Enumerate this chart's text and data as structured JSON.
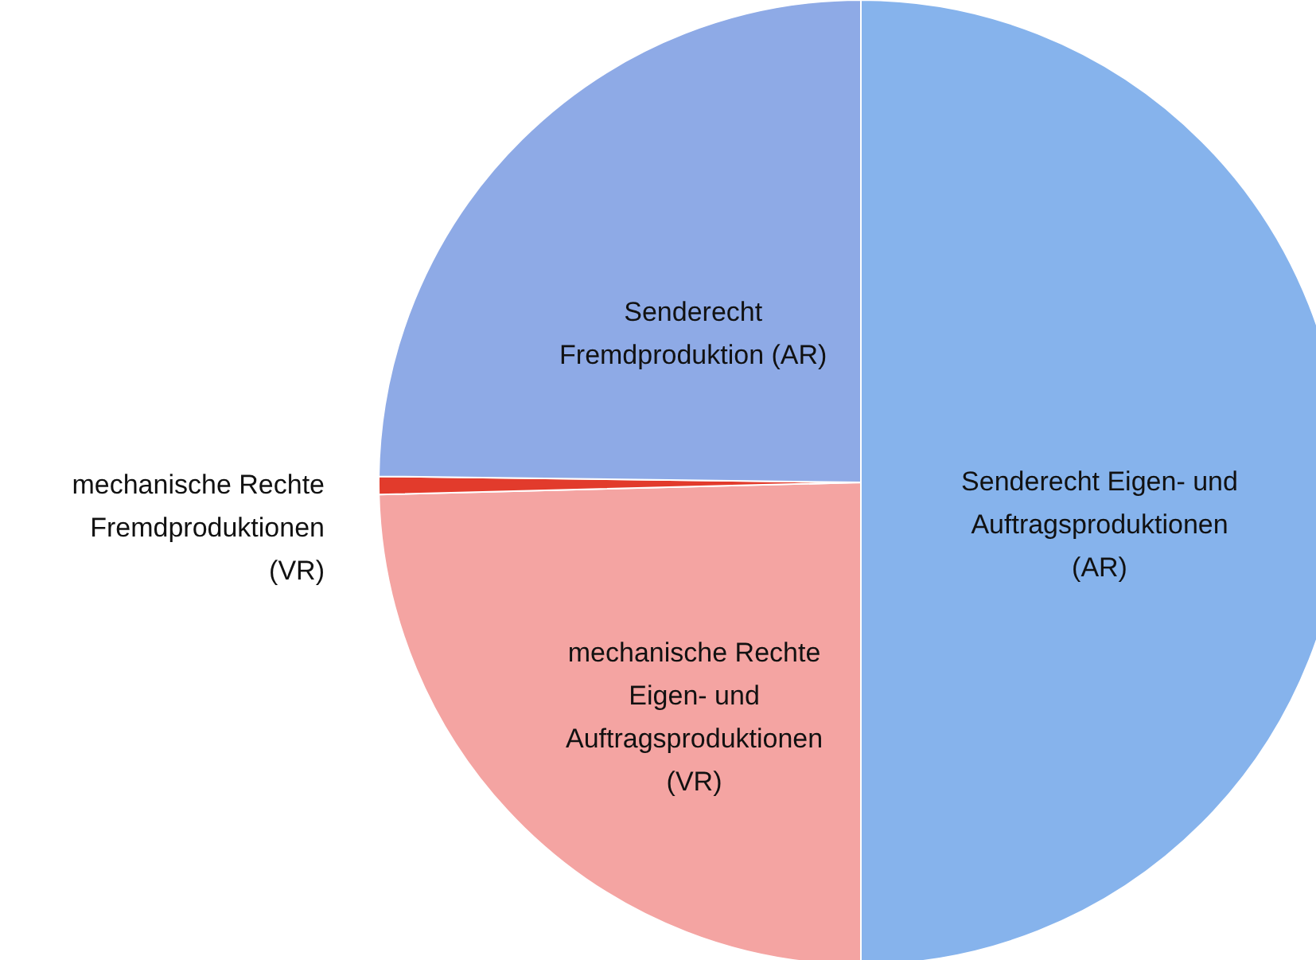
{
  "chart_data": {
    "type": "pie",
    "categories": [
      "Senderecht Eigen- und\nAuftragsproduktionen\n(AR)",
      "mechanische Rechte\nEigen- und\nAuftragsproduktionen\n(VR)",
      "mechanische Rechte\nFremdproduktionen\n(VR)",
      "Senderecht\nFremdproduktion (AR)"
    ],
    "values": [
      50,
      24.6,
      0.6,
      24.8
    ],
    "colors": [
      "#86b3ec",
      "#f4a4a2",
      "#e23b2c",
      "#8eaae6"
    ]
  }
}
